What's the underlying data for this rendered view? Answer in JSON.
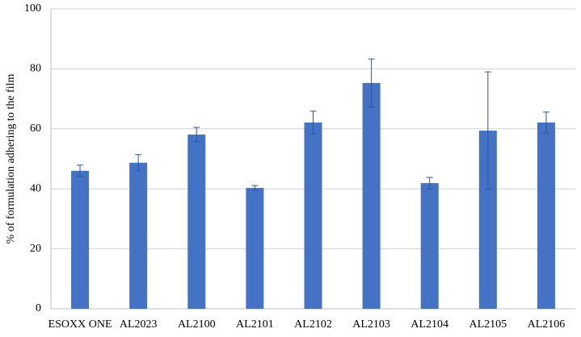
{
  "chart_data": {
    "type": "bar",
    "y_label": "% of formulation adhering to the film",
    "categories": [
      "ESOXX ONE",
      "AL2023",
      "AL2100",
      "AL2101",
      "AL2102",
      "AL2103",
      "AL2104",
      "AL2105",
      "AL2106"
    ],
    "values": [
      46.0,
      48.7,
      58.1,
      40.3,
      62.1,
      75.3,
      41.9,
      59.4,
      62.1
    ],
    "errors": [
      1.9,
      2.7,
      2.4,
      0.8,
      3.8,
      8.0,
      1.9,
      19.6,
      3.5
    ],
    "color": "#4472c4",
    "ylim": [
      0,
      100
    ],
    "yticks": [
      0,
      20,
      40,
      60,
      80,
      100
    ],
    "grid": true
  }
}
